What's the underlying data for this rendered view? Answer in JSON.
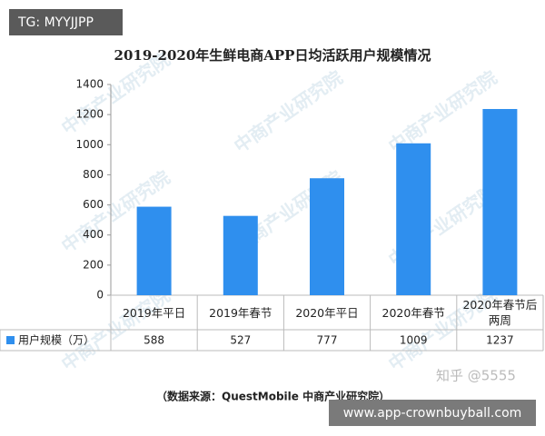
{
  "chart_data": {
    "type": "bar",
    "title": "2019-2020年生鲜电商APP日均活跃用户规模情况",
    "categories": [
      "2019年平日",
      "2019年春节",
      "2020年平日",
      "2020年春节",
      "2020年春节后两周"
    ],
    "series": [
      {
        "name": "用户规模（万）",
        "color": "#2f8fee",
        "values": [
          588,
          527,
          777,
          1009,
          1237
        ]
      }
    ],
    "ylim": [
      0,
      1400
    ],
    "yticks": [
      0,
      200,
      400,
      600,
      800,
      1000,
      1200,
      1400
    ],
    "grid": false,
    "watermark": "中商产业研究院",
    "source": "（数据来源：QuestMobile  中商产业研究院）"
  },
  "overlays": {
    "top_left": "TG: MYYJJPP",
    "zhihu": "知乎 @5555",
    "bottom_right": "www.app-crownbuyball.com"
  }
}
